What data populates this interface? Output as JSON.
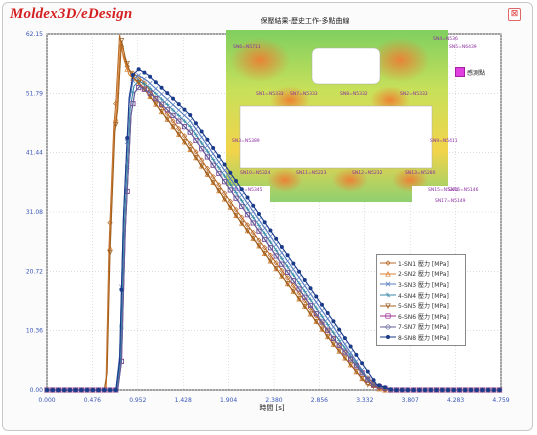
{
  "window": {
    "brand": "Moldex3D/eDesign",
    "close_glyph": "⊠"
  },
  "plot": {
    "title": "保壓結果-歷史工作-多點曲線"
  },
  "part_legend": {
    "label": "感測點"
  },
  "sensor_labels": [
    "SN4=N536",
    "SN5=N6439",
    "SN6=N5711",
    "SN1=N5333",
    "SN7=N5333",
    "SN8=N5332",
    "SN2=N5333",
    "SN3=N5389",
    "SN9=N5411",
    "SN10=N5324",
    "SN11=N5223",
    "SN12=N5232",
    "SN13=N5280",
    "SN14=N5345",
    "SN15=N5370",
    "SN16=N5146",
    "SN17=N5149"
  ],
  "chart_data": {
    "type": "line",
    "xlabel": "時間 [s]",
    "ylabel": "",
    "xlim": [
      0,
      4.755
    ],
    "ylim": [
      0,
      62.15
    ],
    "xticks": [
      "0.000",
      "0.476",
      "0.952",
      "1.428",
      "1.904",
      "2.380",
      "2.856",
      "3.332",
      "3.807",
      "4.283",
      "4.759"
    ],
    "yticks": [
      "0.00",
      "10.36",
      "20.72",
      "31.08",
      "41.44",
      "51.79",
      "62.15"
    ],
    "series": [
      {
        "name": "1-SN1 壓力 [MPa]",
        "color": "#b86a28",
        "marker": "diamond",
        "x": [
          0,
          0.6,
          0.62,
          0.65,
          0.7,
          0.72,
          0.76,
          0.79,
          0.85,
          1.0,
          1.5,
          2.0,
          2.5,
          3.0,
          3.3,
          3.5,
          3.6
        ],
        "y": [
          0,
          0,
          2,
          25,
          46,
          50,
          62,
          59,
          56,
          54,
          43,
          31,
          20,
          9,
          3,
          0,
          0
        ]
      },
      {
        "name": "2-SN2 壓力 [MPa]",
        "color": "#d98030",
        "marker": "triangle",
        "x": [
          0,
          0.62,
          0.65,
          0.7,
          0.73,
          0.77,
          0.8,
          0.86,
          1.0,
          1.5,
          2.0,
          2.5,
          3.0,
          3.3,
          3.5,
          3.62
        ],
        "y": [
          0,
          0,
          20,
          44,
          49,
          61,
          58,
          55,
          53,
          42,
          30,
          19,
          8,
          2,
          0,
          0
        ]
      },
      {
        "name": "3-SN3 壓力 [MPa]",
        "color": "#5a7cc0",
        "marker": "x",
        "x": [
          0,
          0.72,
          0.76,
          0.8,
          0.86,
          0.9,
          0.95,
          1.05,
          1.5,
          2.0,
          2.5,
          3.0,
          3.4,
          3.6,
          3.8
        ],
        "y": [
          0,
          0,
          6,
          30,
          50,
          54,
          55,
          54,
          47,
          35,
          23,
          11,
          1,
          0,
          0
        ]
      },
      {
        "name": "4-SN4 壓力 [MPa]",
        "color": "#3a8aa8",
        "marker": "star",
        "x": [
          0,
          0.73,
          0.77,
          0.81,
          0.87,
          0.91,
          0.96,
          1.06,
          1.5,
          2.0,
          2.5,
          3.0,
          3.4,
          3.6,
          3.8
        ],
        "y": [
          0,
          0,
          5,
          29,
          49,
          53,
          54,
          53,
          46,
          34,
          22,
          10,
          1,
          0,
          0
        ]
      },
      {
        "name": "5-SN5 壓力 [MPa]",
        "color": "#a06020",
        "marker": "triangle-down",
        "x": [
          0,
          0.6,
          0.63,
          0.66,
          0.71,
          0.74,
          0.78,
          0.82,
          0.88,
          1.0,
          1.5,
          2.0,
          2.5,
          3.0,
          3.35,
          3.55
        ],
        "y": [
          0,
          0,
          3,
          24,
          45,
          49,
          61,
          58,
          55,
          53,
          42,
          30,
          19,
          8,
          1,
          0
        ]
      },
      {
        "name": "6-SN6 壓力 [MPa]",
        "color": "#9a3090",
        "marker": "square",
        "x": [
          0,
          0.74,
          0.78,
          0.82,
          0.88,
          0.92,
          0.97,
          1.07,
          1.5,
          2.0,
          2.5,
          3.0,
          3.4,
          3.6,
          3.8
        ],
        "y": [
          0,
          0,
          5,
          28,
          48,
          52,
          53,
          52,
          45,
          33,
          21,
          9,
          1,
          0,
          0
        ]
      },
      {
        "name": "7-SN7 壓力 [MPa]",
        "color": "#60609a",
        "marker": "circle",
        "x": [
          0,
          0.74,
          0.78,
          0.82,
          0.88,
          0.92,
          0.97,
          1.07,
          1.5,
          2.0,
          2.5,
          3.0,
          3.4,
          3.6,
          3.8
        ],
        "y": [
          0,
          0,
          5,
          28,
          48,
          52,
          53,
          52,
          45,
          33,
          21,
          9,
          1,
          0,
          0
        ]
      },
      {
        "name": "8-SN8 壓力 [MPa]",
        "color": "#1a3a8a",
        "marker": "dot",
        "x": [
          0,
          0.72,
          0.76,
          0.8,
          0.86,
          0.9,
          0.96,
          1.06,
          1.5,
          2.0,
          2.5,
          3.0,
          3.45,
          3.62,
          3.82
        ],
        "y": [
          0,
          0,
          5,
          30,
          51,
          55,
          56,
          55,
          48,
          36,
          24,
          12,
          1,
          0,
          0
        ]
      }
    ]
  }
}
